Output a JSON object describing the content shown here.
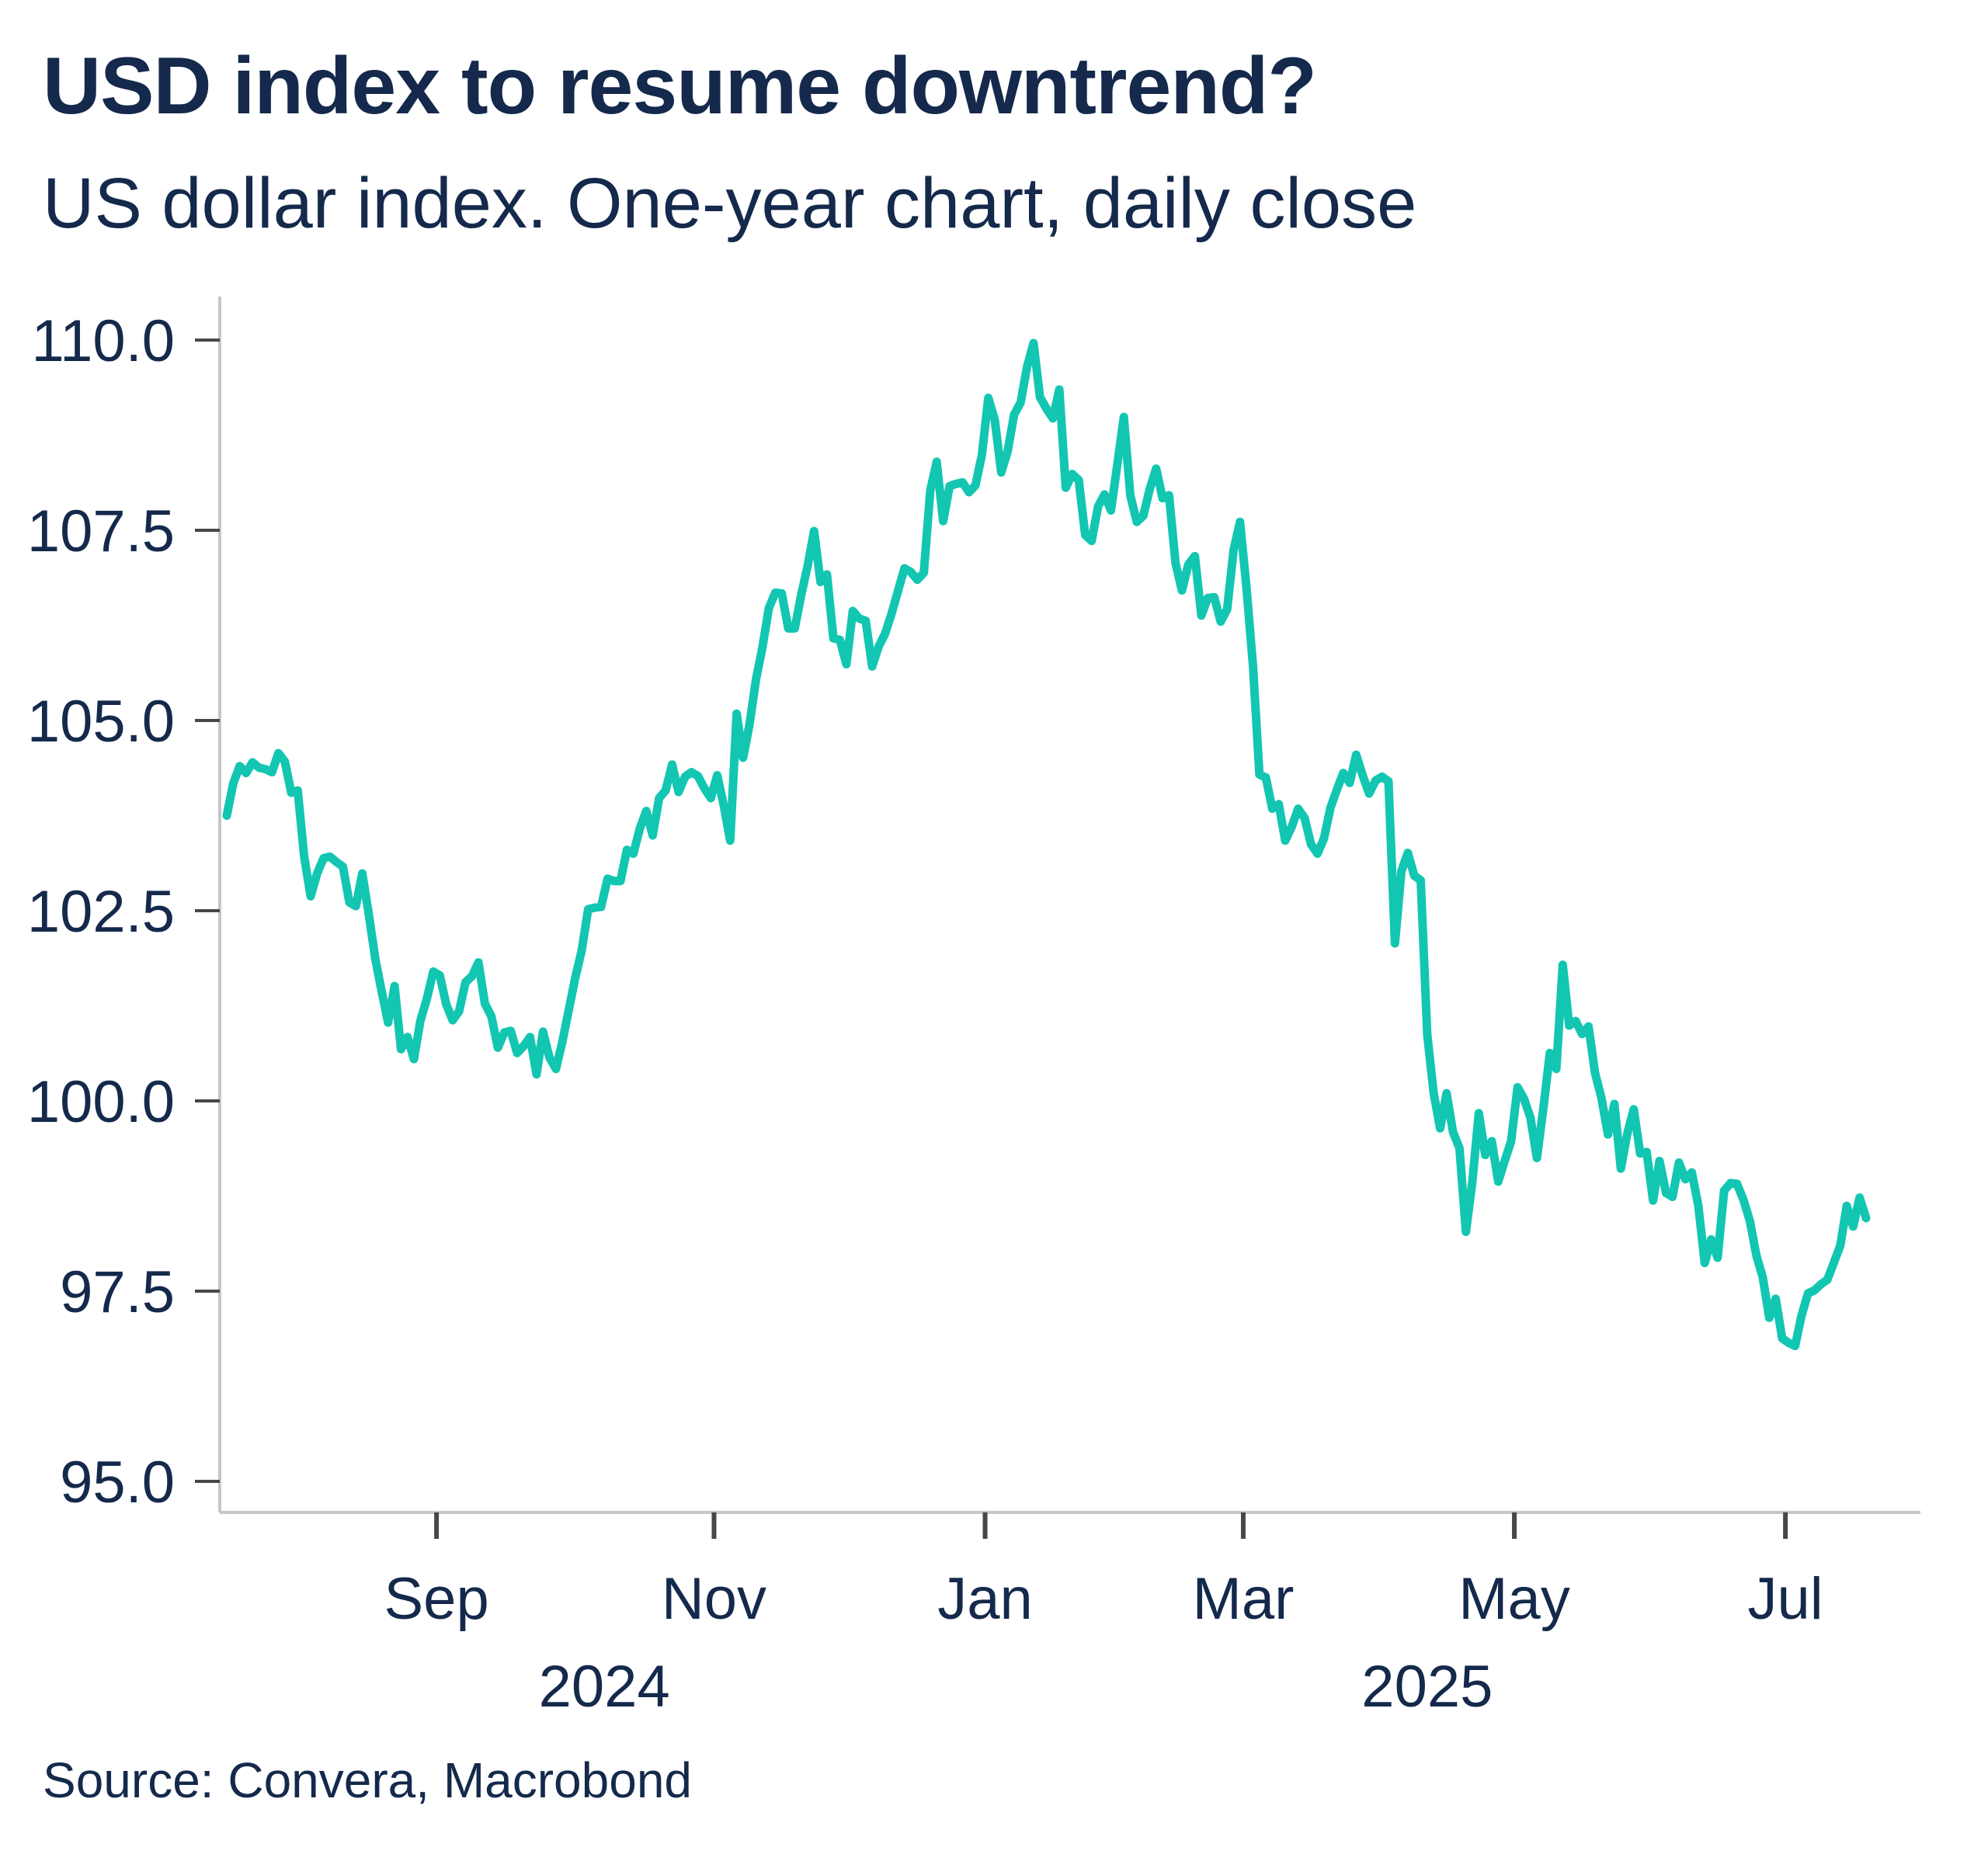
{
  "header": {
    "title": "USD index to resume downtrend?",
    "subtitle": "US dollar index. One-year chart, daily close"
  },
  "footer": {
    "source": "Source: Convera, Macrobond"
  },
  "colors": {
    "line": "#12C6B2",
    "text": "#14294B",
    "spine": "#C6C6C6",
    "tick": "#474747",
    "background": "#FFFFFF"
  },
  "chart_data": {
    "type": "line",
    "title": "USD index to resume downtrend?",
    "subtitle": "US dollar index. One-year chart, daily close",
    "series_name": "US dollar index, daily close",
    "x_start_date": "2024-07-17",
    "x_end_date": "2025-07-18",
    "frequency": "business-daily",
    "grid": false,
    "legend": "none",
    "ylim": [
      94.6,
      110.6
    ],
    "y_ticks": [
      {
        "value": 110.0,
        "label": "110.0"
      },
      {
        "value": 107.5,
        "label": "107.5"
      },
      {
        "value": 105.0,
        "label": "105.0"
      },
      {
        "value": 102.5,
        "label": "102.5"
      },
      {
        "value": 100.0,
        "label": "100.0"
      },
      {
        "value": 97.5,
        "label": "97.5"
      },
      {
        "value": 95.0,
        "label": "95.0"
      }
    ],
    "x_ticks": [
      {
        "position": 32.5,
        "label": "Sep"
      },
      {
        "position": 75.5,
        "label": "Nov"
      },
      {
        "position": 117.5,
        "label": "Jan"
      },
      {
        "position": 157.5,
        "label": "Mar"
      },
      {
        "position": 199.5,
        "label": "May"
      },
      {
        "position": 241.5,
        "label": "Jul"
      }
    ],
    "year_labels": [
      {
        "position": 58.5,
        "label": "2024"
      },
      {
        "position": 186.0,
        "label": "2025"
      }
    ],
    "dates": [
      "2024-07-17",
      "2024-07-18",
      "2024-07-19",
      "2024-07-22",
      "2024-07-23",
      "2024-07-24",
      "2024-07-25",
      "2024-07-26",
      "2024-07-29",
      "2024-07-30",
      "2024-07-31",
      "2024-08-01",
      "2024-08-02",
      "2024-08-05",
      "2024-08-06",
      "2024-08-07",
      "2024-08-08",
      "2024-08-09",
      "2024-08-12",
      "2024-08-13",
      "2024-08-14",
      "2024-08-15",
      "2024-08-16",
      "2024-08-19",
      "2024-08-20",
      "2024-08-21",
      "2024-08-22",
      "2024-08-23",
      "2024-08-26",
      "2024-08-27",
      "2024-08-28",
      "2024-08-29",
      "2024-08-30",
      "2024-09-03",
      "2024-09-04",
      "2024-09-05",
      "2024-09-06",
      "2024-09-09",
      "2024-09-10",
      "2024-09-11",
      "2024-09-12",
      "2024-09-13",
      "2024-09-16",
      "2024-09-17",
      "2024-09-18",
      "2024-09-19",
      "2024-09-20",
      "2024-09-23",
      "2024-09-24",
      "2024-09-25",
      "2024-09-26",
      "2024-09-27",
      "2024-09-30",
      "2024-10-01",
      "2024-10-02",
      "2024-10-03",
      "2024-10-04",
      "2024-10-07",
      "2024-10-08",
      "2024-10-09",
      "2024-10-10",
      "2024-10-11",
      "2024-10-14",
      "2024-10-15",
      "2024-10-16",
      "2024-10-17",
      "2024-10-18",
      "2024-10-21",
      "2024-10-22",
      "2024-10-23",
      "2024-10-24",
      "2024-10-25",
      "2024-10-28",
      "2024-10-29",
      "2024-10-30",
      "2024-10-31",
      "2024-11-01",
      "2024-11-04",
      "2024-11-05",
      "2024-11-06",
      "2024-11-07",
      "2024-11-08",
      "2024-11-11",
      "2024-11-12",
      "2024-11-13",
      "2024-11-14",
      "2024-11-15",
      "2024-11-18",
      "2024-11-19",
      "2024-11-20",
      "2024-11-21",
      "2024-11-22",
      "2024-11-25",
      "2024-11-26",
      "2024-11-27",
      "2024-11-28",
      "2024-11-29",
      "2024-12-02",
      "2024-12-03",
      "2024-12-04",
      "2024-12-05",
      "2024-12-06",
      "2024-12-09",
      "2024-12-10",
      "2024-12-11",
      "2024-12-12",
      "2024-12-13",
      "2024-12-16",
      "2024-12-17",
      "2024-12-18",
      "2024-12-19",
      "2024-12-20",
      "2024-12-23",
      "2024-12-24",
      "2024-12-26",
      "2024-12-27",
      "2024-12-30",
      "2024-12-31",
      "2025-01-02",
      "2025-01-03",
      "2025-01-06",
      "2025-01-07",
      "2025-01-08",
      "2025-01-09",
      "2025-01-10",
      "2025-01-13",
      "2025-01-14",
      "2025-01-15",
      "2025-01-16",
      "2025-01-17",
      "2025-01-21",
      "2025-01-22",
      "2025-01-23",
      "2025-01-24",
      "2025-01-27",
      "2025-01-28",
      "2025-01-29",
      "2025-01-30",
      "2025-01-31",
      "2025-02-03",
      "2025-02-04",
      "2025-02-05",
      "2025-02-06",
      "2025-02-07",
      "2025-02-10",
      "2025-02-11",
      "2025-02-12",
      "2025-02-13",
      "2025-02-14",
      "2025-02-18",
      "2025-02-19",
      "2025-02-20",
      "2025-02-21",
      "2025-02-24",
      "2025-02-25",
      "2025-02-26",
      "2025-02-27",
      "2025-02-28",
      "2025-03-03",
      "2025-03-04",
      "2025-03-05",
      "2025-03-06",
      "2025-03-07",
      "2025-03-10",
      "2025-03-11",
      "2025-03-12",
      "2025-03-13",
      "2025-03-14",
      "2025-03-17",
      "2025-03-18",
      "2025-03-19",
      "2025-03-20",
      "2025-03-21",
      "2025-03-24",
      "2025-03-25",
      "2025-03-26",
      "2025-03-27",
      "2025-03-28",
      "2025-03-31",
      "2025-04-01",
      "2025-04-02",
      "2025-04-03",
      "2025-04-04",
      "2025-04-07",
      "2025-04-08",
      "2025-04-09",
      "2025-04-10",
      "2025-04-11",
      "2025-04-14",
      "2025-04-15",
      "2025-04-16",
      "2025-04-17",
      "2025-04-21",
      "2025-04-22",
      "2025-04-23",
      "2025-04-24",
      "2025-04-25",
      "2025-04-28",
      "2025-04-29",
      "2025-04-30",
      "2025-05-01",
      "2025-05-02",
      "2025-05-05",
      "2025-05-06",
      "2025-05-07",
      "2025-05-08",
      "2025-05-09",
      "2025-05-12",
      "2025-05-13",
      "2025-05-14",
      "2025-05-15",
      "2025-05-16",
      "2025-05-19",
      "2025-05-20",
      "2025-05-21",
      "2025-05-22",
      "2025-05-23",
      "2025-05-27",
      "2025-05-28",
      "2025-05-29",
      "2025-05-30",
      "2025-06-02",
      "2025-06-03",
      "2025-06-04",
      "2025-06-05",
      "2025-06-06",
      "2025-06-09",
      "2025-06-10",
      "2025-06-11",
      "2025-06-12",
      "2025-06-13",
      "2025-06-16",
      "2025-06-17",
      "2025-06-18",
      "2025-06-19",
      "2025-06-20",
      "2025-06-23",
      "2025-06-24",
      "2025-06-25",
      "2025-06-26",
      "2025-06-27",
      "2025-06-30",
      "2025-07-01",
      "2025-07-02",
      "2025-07-03",
      "2025-07-07",
      "2025-07-08",
      "2025-07-09",
      "2025-07-10",
      "2025-07-11",
      "2025-07-14",
      "2025-07-15",
      "2025-07-16",
      "2025-07-17",
      "2025-07-18"
    ],
    "values": [
      103.75,
      104.17,
      104.4,
      104.31,
      104.45,
      104.38,
      104.36,
      104.32,
      104.57,
      104.46,
      104.05,
      104.08,
      103.21,
      102.69,
      102.99,
      103.19,
      103.21,
      103.14,
      103.08,
      102.61,
      102.56,
      102.99,
      102.46,
      101.87,
      101.44,
      101.03,
      101.51,
      100.68,
      100.84,
      100.55,
      101.05,
      101.34,
      101.7,
      101.65,
      101.27,
      101.06,
      101.18,
      101.56,
      101.64,
      101.82,
      101.28,
      101.11,
      100.7,
      100.9,
      100.92,
      100.63,
      100.72,
      100.84,
      100.35,
      100.91,
      100.57,
      100.42,
      100.78,
      101.2,
      101.62,
      101.98,
      102.52,
      102.54,
      102.55,
      102.92,
      102.89,
      102.89,
      103.3,
      103.25,
      103.58,
      103.81,
      103.49,
      103.98,
      104.08,
      104.42,
      104.06,
      104.26,
      104.32,
      104.27,
      104.11,
      103.98,
      104.28,
      103.89,
      103.42,
      105.09,
      104.51,
      104.95,
      105.54,
      105.96,
      106.48,
      106.68,
      106.67,
      106.21,
      106.21,
      106.65,
      107.03,
      107.49,
      106.82,
      106.92,
      106.08,
      106.06,
      105.74,
      106.44,
      106.34,
      106.31,
      105.71,
      105.97,
      106.14,
      106.4,
      106.7,
      107.0,
      106.95,
      106.85,
      106.94,
      108.02,
      108.4,
      107.62,
      108.08,
      108.11,
      108.13,
      108.0,
      108.09,
      108.49,
      109.24,
      108.95,
      108.26,
      108.54,
      109.02,
      109.18,
      109.65,
      109.96,
      109.25,
      109.1,
      108.97,
      109.35,
      108.06,
      108.24,
      108.16,
      107.44,
      107.36,
      107.81,
      107.97,
      107.76,
      108.37,
      108.99,
      107.96,
      107.61,
      107.69,
      108.04,
      108.31,
      107.92,
      107.96,
      107.07,
      106.71,
      107.05,
      107.16,
      106.38,
      106.61,
      106.62,
      106.3,
      106.46,
      107.24,
      107.61,
      106.75,
      105.72,
      104.29,
      104.25,
      103.84,
      103.9,
      103.42,
      103.6,
      103.84,
      103.72,
      103.37,
      103.25,
      103.45,
      103.85,
      104.09,
      104.31,
      104.18,
      104.55,
      104.28,
      104.04,
      104.21,
      104.26,
      104.2,
      102.07,
      103.02,
      103.26,
      102.96,
      102.9,
      100.87,
      100.1,
      99.64,
      100.1,
      99.59,
      99.38,
      98.28,
      98.94,
      99.84,
      99.29,
      99.47,
      98.94,
      99.21,
      99.47,
      100.18,
      100.03,
      99.78,
      99.25,
      99.9,
      100.63,
      100.42,
      101.79,
      100.99,
      101.05,
      100.88,
      100.98,
      100.37,
      100.04,
      99.56,
      99.96,
      99.11,
      99.57,
      99.89,
      99.31,
      99.33,
      98.69,
      99.21,
      98.79,
      98.74,
      99.19,
      98.97,
      99.06,
      98.63,
      97.87,
      98.18,
      97.94,
      98.82,
      98.92,
      98.91,
      98.7,
      98.42,
      97.97,
      97.68,
      97.15,
      97.4,
      96.88,
      96.82,
      96.78,
      97.18,
      97.47,
      97.51,
      97.59,
      97.65,
      97.87,
      98.1,
      98.62,
      98.35,
      98.73,
      98.46
    ]
  }
}
